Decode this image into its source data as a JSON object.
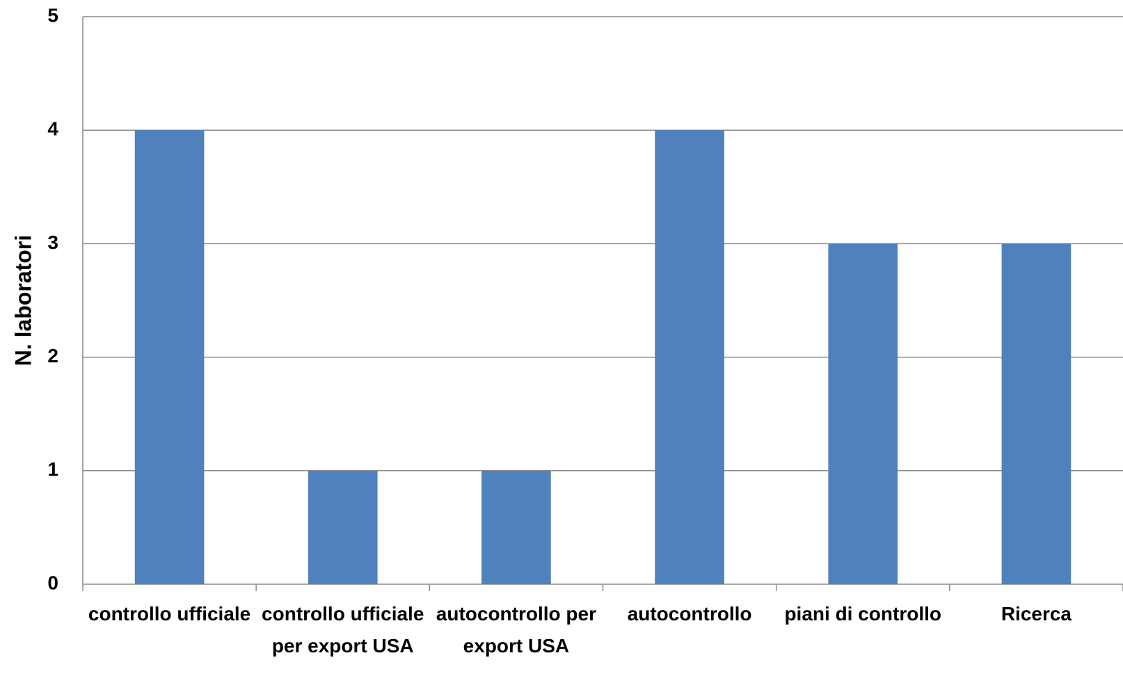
{
  "chart_data": {
    "type": "bar",
    "y_label": "N. laboratori",
    "categories": [
      "controllo ufficiale",
      "controllo ufficiale per export USA",
      "autocontrollo per export USA",
      "autocontrollo",
      "piani di controllo",
      "Ricerca"
    ],
    "values": [
      4,
      1,
      1,
      4,
      3,
      3
    ],
    "color": "#4f81bd",
    "ylim": [
      0,
      5
    ],
    "yticks": [
      0,
      1,
      2,
      3,
      4,
      5
    ],
    "grid": true
  }
}
